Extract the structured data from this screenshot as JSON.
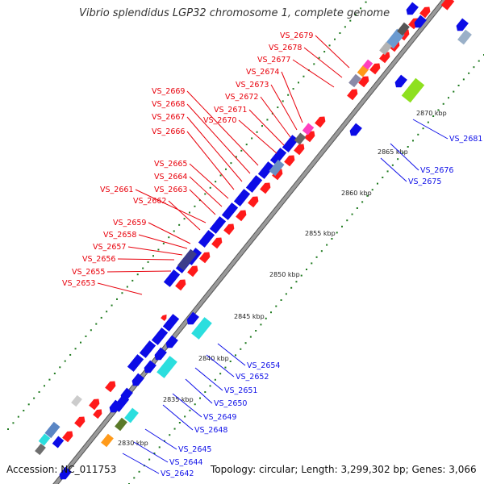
{
  "title": "Vibrio splendidus LGP32 chromosome 1, complete genome",
  "footer": {
    "accession": "Accession: NC_011753",
    "summary": "Topology: circular; Length: 3,299,302 bp; Genes: 3,066"
  },
  "colors": {
    "forward_label": "#e8000b",
    "reverse_label": "#0f10e8",
    "backbone": "#9a9a9a",
    "tick": "#1f7a1f"
  },
  "kbp_labels": [
    "2830 kbp",
    "2835 kbp",
    "2840 kbp",
    "2845 kbp",
    "2850 kbp",
    "2855 kbp",
    "2860 kbp",
    "2865 kbp",
    "2870 kbp"
  ],
  "forward_gene_labels": [
    "VS_2679",
    "VS_2678",
    "VS_2677",
    "VS_2674",
    "VS_2673",
    "VS_2672",
    "VS_2671",
    "VS_2670",
    "VS_2669",
    "VS_2668",
    "VS_2667",
    "VS_2666",
    "VS_2665",
    "VS_2664",
    "VS_2663",
    "VS_2661",
    "VS_2662",
    "VS_2659",
    "VS_2658",
    "VS_2657",
    "VS_2656",
    "VS_2655",
    "VS_2653"
  ],
  "reverse_gene_labels": [
    "VS_2681",
    "VS_2676",
    "VS_2675",
    "VS_2654",
    "VS_2652",
    "VS_2651",
    "VS_2650",
    "VS_2649",
    "VS_2648",
    "VS_2645",
    "VS_2644",
    "VS_2642"
  ]
}
